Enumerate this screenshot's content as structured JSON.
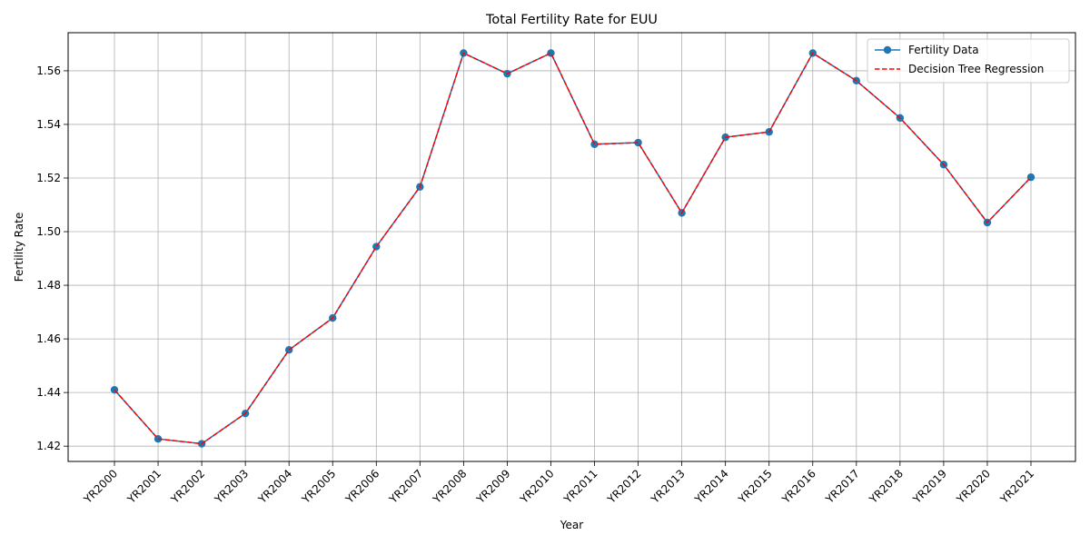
{
  "chart_data": {
    "type": "line",
    "title": "Total Fertility Rate for EUU",
    "xlabel": "Year",
    "ylabel": "Fertility Rate",
    "categories": [
      "YR2000",
      "YR2001",
      "YR2002",
      "YR2003",
      "YR2004",
      "YR2005",
      "YR2006",
      "YR2007",
      "YR2008",
      "YR2009",
      "YR2010",
      "YR2011",
      "YR2012",
      "YR2013",
      "YR2014",
      "YR2015",
      "YR2016",
      "YR2017",
      "YR2018",
      "YR2019",
      "YR2020",
      "YR2021"
    ],
    "series": [
      {
        "name": "Fertility Data",
        "color": "#1f77b4",
        "line_style": "solid",
        "marker": "circle",
        "values": [
          1.441,
          1.4227,
          1.4209,
          1.4322,
          1.4559,
          1.4678,
          1.4944,
          1.5167,
          1.5666,
          1.5589,
          1.5666,
          1.5326,
          1.5332,
          1.507,
          1.5352,
          1.5372,
          1.5666,
          1.5563,
          1.5424,
          1.525,
          1.5034,
          1.5203
        ]
      },
      {
        "name": "Decision Tree Regression",
        "color": "#ff0000",
        "line_style": "dashed",
        "marker": "none",
        "values": [
          1.441,
          1.4227,
          1.4209,
          1.4322,
          1.4559,
          1.4678,
          1.4944,
          1.5167,
          1.5666,
          1.5589,
          1.5666,
          1.5326,
          1.5332,
          1.507,
          1.5352,
          1.5372,
          1.5666,
          1.5563,
          1.5424,
          1.525,
          1.5034,
          1.5203
        ]
      }
    ],
    "ylim": [
      1.4143,
      1.5742
    ],
    "yticks": [
      "1.42",
      "1.44",
      "1.46",
      "1.48",
      "1.50",
      "1.52",
      "1.54",
      "1.56"
    ],
    "grid": true,
    "legend_position": "top-right"
  }
}
